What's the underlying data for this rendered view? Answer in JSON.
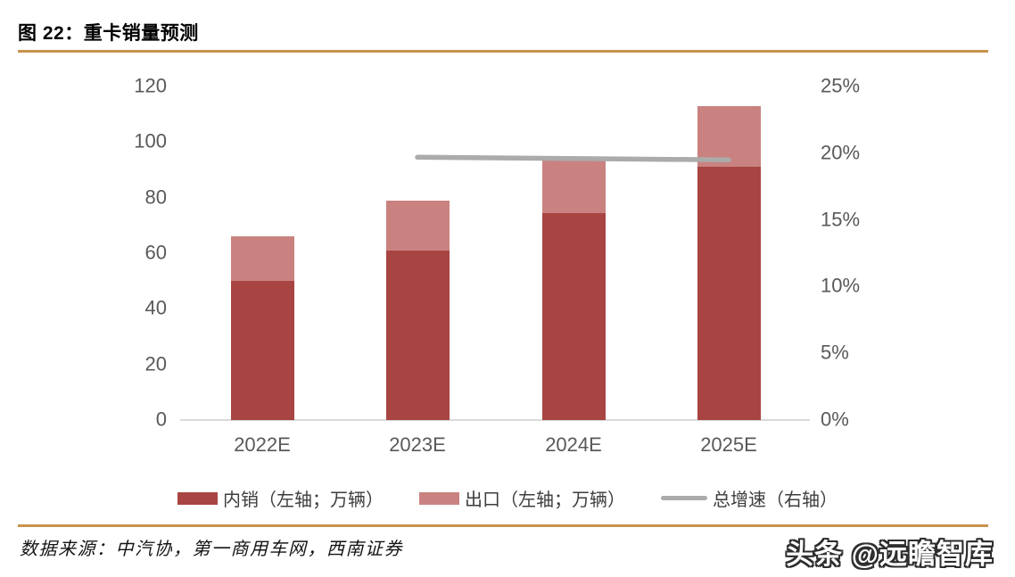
{
  "header": {
    "title": "图 22：重卡销量预测"
  },
  "chart_data": {
    "type": "bar",
    "subtype": "stacked-bar-with-line",
    "title": "重卡销量预测",
    "categories": [
      "2022E",
      "2023E",
      "2024E",
      "2025E"
    ],
    "series": [
      {
        "name": "内销（左轴；万辆）",
        "type": "bar",
        "axis": "left",
        "color": "#A84543",
        "values": [
          50,
          61,
          74.5,
          91
        ]
      },
      {
        "name": "出口（左轴；万辆）",
        "type": "bar",
        "axis": "left",
        "color": "#C98280",
        "values": [
          16,
          18,
          19,
          22
        ]
      },
      {
        "name": "总增速（右轴）",
        "type": "line",
        "axis": "right",
        "color": "#ABABAB",
        "values": [
          null,
          19.7,
          19.6,
          19.5
        ]
      }
    ],
    "left_axis": {
      "min": 0,
      "max": 120,
      "step": 20,
      "ticks": [
        "0",
        "20",
        "40",
        "60",
        "80",
        "100",
        "120"
      ]
    },
    "right_axis": {
      "min": 0,
      "max": 25,
      "step": 5,
      "ticks": [
        "0%",
        "5%",
        "10%",
        "15%",
        "20%",
        "25%"
      ],
      "unit": "%"
    },
    "grid": false,
    "stacked": true,
    "legend_position": "bottom"
  },
  "footer": {
    "source": "数据来源：中汽协，第一商用车网，西南证券",
    "watermark": "头条 @远瞻智库"
  },
  "colors": {
    "accent_rule": "#C7944D",
    "axis_text": "#595959",
    "baseline": "#D9D9D9",
    "title_text": "#000000"
  }
}
